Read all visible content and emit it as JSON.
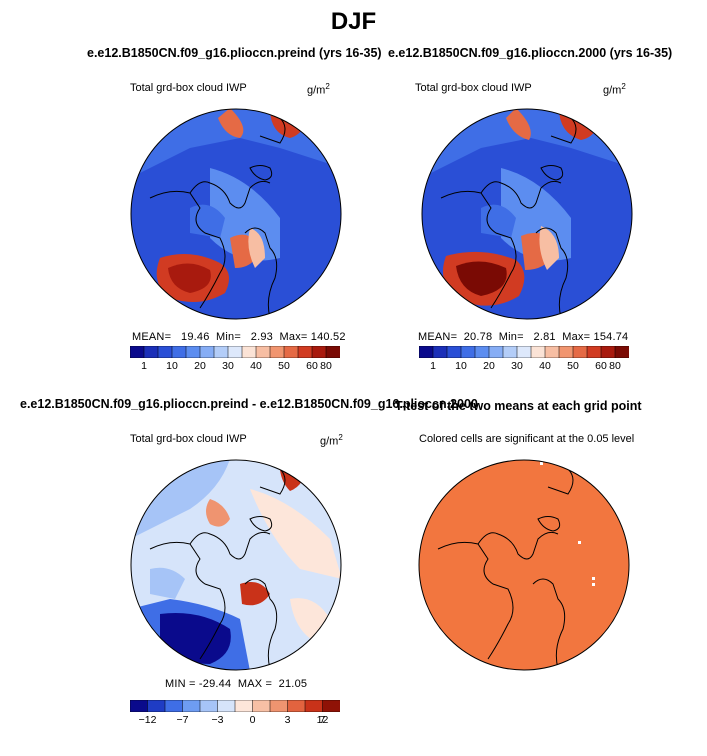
{
  "title": "DJF",
  "panels": [
    {
      "run_title": "e.e12.B1850CN.f09_g16.plioccn.preind (yrs 16-35)",
      "variable": "Total grd-box cloud IWP",
      "units_base": "g/m",
      "units_exp": "2",
      "stats": {
        "mean_label": "MEAN=",
        "mean": "19.46",
        "min_label": "Min=",
        "min": "2.93",
        "max_label": "Max=",
        "max": "140.52"
      }
    },
    {
      "run_title": "e.e12.B1850CN.f09_g16.plioccn.2000 (yrs 16-35)",
      "variable": "Total grd-box cloud IWP",
      "units_base": "g/m",
      "units_exp": "2",
      "stats": {
        "mean_label": "MEAN=",
        "mean": "20.78",
        "min_label": "Min=",
        "min": "2.81",
        "max_label": "Max=",
        "max": "154.74"
      }
    },
    {
      "run_title": "e.e12.B1850CN.f09_g16.plioccn.preind - e.e12.B1850CN.f09_g16.plioccn.2000",
      "variable": "Total grd-box cloud IWP",
      "units_base": "g/m",
      "units_exp": "2",
      "stats": {
        "min_label": "MIN =",
        "min": "-29.44",
        "max_label": "MAX =",
        "max": "21.05"
      }
    },
    {
      "run_title": "T-test of the two means at each grid point",
      "variable": "Colored cells are significant at the 0.05 level"
    }
  ],
  "chart_data": [
    {
      "type": "heatmap",
      "projection": "north polar stereographic",
      "title": "e.e12.B1850CN.f09_g16.plioccn.preind (yrs 16-35)",
      "variable": "Total grd-box cloud IWP",
      "units": "g/m2",
      "mean": 19.46,
      "min": 2.93,
      "max": 140.52,
      "colorbar_levels": [
        1,
        5,
        10,
        15,
        20,
        25,
        30,
        35,
        40,
        45,
        50,
        55,
        60,
        70,
        80
      ],
      "colorbar_tick_labels": [
        "1",
        "10",
        "20",
        "30",
        "40",
        "50",
        "60",
        "80"
      ]
    },
    {
      "type": "heatmap",
      "projection": "north polar stereographic",
      "title": "e.e12.B1850CN.f09_g16.plioccn.2000 (yrs 16-35)",
      "variable": "Total grd-box cloud IWP",
      "units": "g/m2",
      "mean": 20.78,
      "min": 2.81,
      "max": 154.74,
      "colorbar_levels": [
        1,
        5,
        10,
        15,
        20,
        25,
        30,
        35,
        40,
        45,
        50,
        55,
        60,
        70,
        80
      ],
      "colorbar_tick_labels": [
        "1",
        "10",
        "20",
        "30",
        "40",
        "50",
        "60",
        "80"
      ]
    },
    {
      "type": "heatmap",
      "projection": "north polar stereographic",
      "title": "e.e12.B1850CN.f09_g16.plioccn.preind - e.e12.B1850CN.f09_g16.plioccn.2000",
      "variable": "Total grd-box cloud IWP",
      "units": "g/m2",
      "min": -29.44,
      "max": 21.05,
      "colorbar_levels": [
        -12,
        -10,
        -7,
        -5,
        -3,
        -1,
        0,
        1,
        3,
        5,
        7,
        10,
        12
      ],
      "colorbar_tick_labels": [
        "-12",
        "-7",
        "-3",
        "0",
        "3",
        "7",
        "12"
      ]
    },
    {
      "type": "heatmap",
      "projection": "north polar stereographic",
      "title": "T-test of the two means at each grid point",
      "variable": "Colored cells are significant at the 0.05 level",
      "significance_level": 0.05
    }
  ],
  "colors": {
    "abs_scale": [
      "#0a0a8c",
      "#1b2fb8",
      "#2a4fd6",
      "#3f6ee6",
      "#5c8df0",
      "#86adf5",
      "#b3cdf8",
      "#dde8fb",
      "#fbe3d6",
      "#f7bea3",
      "#f1956f",
      "#e56a45",
      "#d13b22",
      "#a81a0e",
      "#7a0a04"
    ],
    "diff_scale": [
      "#0a0a8c",
      "#1f3cc4",
      "#3f6ee6",
      "#6e9cf2",
      "#a6c4f7",
      "#d6e4fa",
      "#fde6da",
      "#f7c0a5",
      "#ef9470",
      "#e2633f",
      "#c93219",
      "#8f1206"
    ],
    "ttest_fill": "#f2763f",
    "coastline": "#000000"
  }
}
